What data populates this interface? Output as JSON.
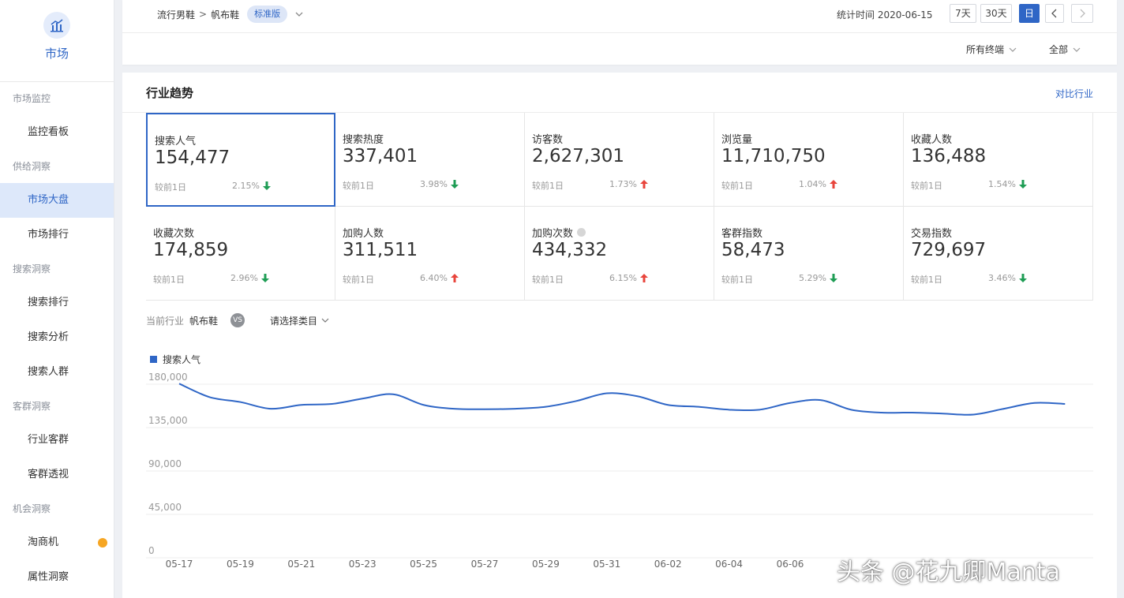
{
  "sidebar": {
    "brand_label": "市场",
    "sections": [
      {
        "title": "市场监控",
        "items": [
          {
            "label": "监控看板"
          }
        ]
      },
      {
        "title": "供给洞察",
        "items": [
          {
            "label": "市场大盘",
            "active": true
          },
          {
            "label": "市场排行"
          }
        ]
      },
      {
        "title": "搜索洞察",
        "items": [
          {
            "label": "搜索排行"
          },
          {
            "label": "搜索分析"
          },
          {
            "label": "搜索人群"
          }
        ]
      },
      {
        "title": "客群洞察",
        "items": [
          {
            "label": "行业客群"
          },
          {
            "label": "客群透视"
          }
        ]
      },
      {
        "title": "机会洞察",
        "items": [
          {
            "label": "淘商机",
            "badge": true
          },
          {
            "label": "属性洞察"
          }
        ]
      }
    ]
  },
  "header": {
    "crumb_parent": "流行男鞋",
    "crumb_sep": ">",
    "crumb_current": "帆布鞋",
    "version_badge": "标准版",
    "stat_time": "统计时间 2020-06-15",
    "range_7": "7天",
    "range_30": "30天",
    "range_day": "日",
    "filter_terminal": "所有终端",
    "filter_all": "全部"
  },
  "card": {
    "title": "行业趋势",
    "compare_link": "对比行业"
  },
  "metrics": [
    {
      "label": "搜索人气",
      "value": "154,477",
      "compare": "较前1日",
      "pct": "2.15%",
      "dir": "down",
      "selected": true
    },
    {
      "label": "搜索热度",
      "value": "337,401",
      "compare": "较前1日",
      "pct": "3.98%",
      "dir": "down"
    },
    {
      "label": "访客数",
      "value": "2,627,301",
      "compare": "较前1日",
      "pct": "1.73%",
      "dir": "up"
    },
    {
      "label": "浏览量",
      "value": "11,710,750",
      "compare": "较前1日",
      "pct": "1.04%",
      "dir": "up"
    },
    {
      "label": "收藏人数",
      "value": "136,488",
      "compare": "较前1日",
      "pct": "1.54%",
      "dir": "down"
    },
    {
      "label": "收藏次数",
      "value": "174,859",
      "compare": "较前1日",
      "pct": "2.96%",
      "dir": "down"
    },
    {
      "label": "加购人数",
      "value": "311,511",
      "compare": "较前1日",
      "pct": "6.40%",
      "dir": "up"
    },
    {
      "label": "加购次数",
      "value": "434,332",
      "compare": "较前1日",
      "pct": "6.15%",
      "dir": "up",
      "info": true
    },
    {
      "label": "客群指数",
      "value": "58,473",
      "compare": "较前1日",
      "pct": "5.29%",
      "dir": "down"
    },
    {
      "label": "交易指数",
      "value": "729,697",
      "compare": "较前1日",
      "pct": "3.46%",
      "dir": "down"
    }
  ],
  "industry_row": {
    "label": "当前行业",
    "value": "帆布鞋",
    "vs": "VS",
    "pick": "请选择类目"
  },
  "colors": {
    "accent": "#2f66c6",
    "up": "#e8453c",
    "down": "#1f9d55"
  },
  "chart_data": {
    "type": "line",
    "series": [
      {
        "name": "搜索人气",
        "x": [
          "05-17",
          "05-18",
          "05-19",
          "05-20",
          "05-21",
          "05-22",
          "05-23",
          "05-24",
          "05-25",
          "05-26",
          "05-27",
          "05-28",
          "05-29",
          "05-30",
          "05-31",
          "06-01",
          "06-02",
          "06-03",
          "06-04",
          "06-05",
          "06-06",
          "06-07",
          "06-08",
          "06-09",
          "06-10",
          "06-11",
          "06-12",
          "06-13",
          "06-14",
          "06-15"
        ],
        "values": [
          174000,
          160000,
          155000,
          148000,
          152000,
          153000,
          158500,
          163000,
          152000,
          148000,
          147500,
          148000,
          150000,
          156000,
          164000,
          161000,
          152000,
          150000,
          147000,
          147000,
          154000,
          157000,
          147000,
          144000,
          144000,
          143000,
          142000,
          148000,
          154000,
          153000
        ]
      }
    ],
    "x_ticks": [
      "05-17",
      "05-19",
      "05-21",
      "05-23",
      "05-25",
      "05-27",
      "05-29",
      "05-31",
      "06-02",
      "06-04",
      "06-06"
    ],
    "y_ticks": [
      "180,000",
      "135,000",
      "90,000",
      "45,000",
      "0"
    ],
    "ylim": [
      0,
      180000
    ],
    "grid": true,
    "legend": "top-left"
  },
  "watermark": "头条 @花九卿Manta"
}
